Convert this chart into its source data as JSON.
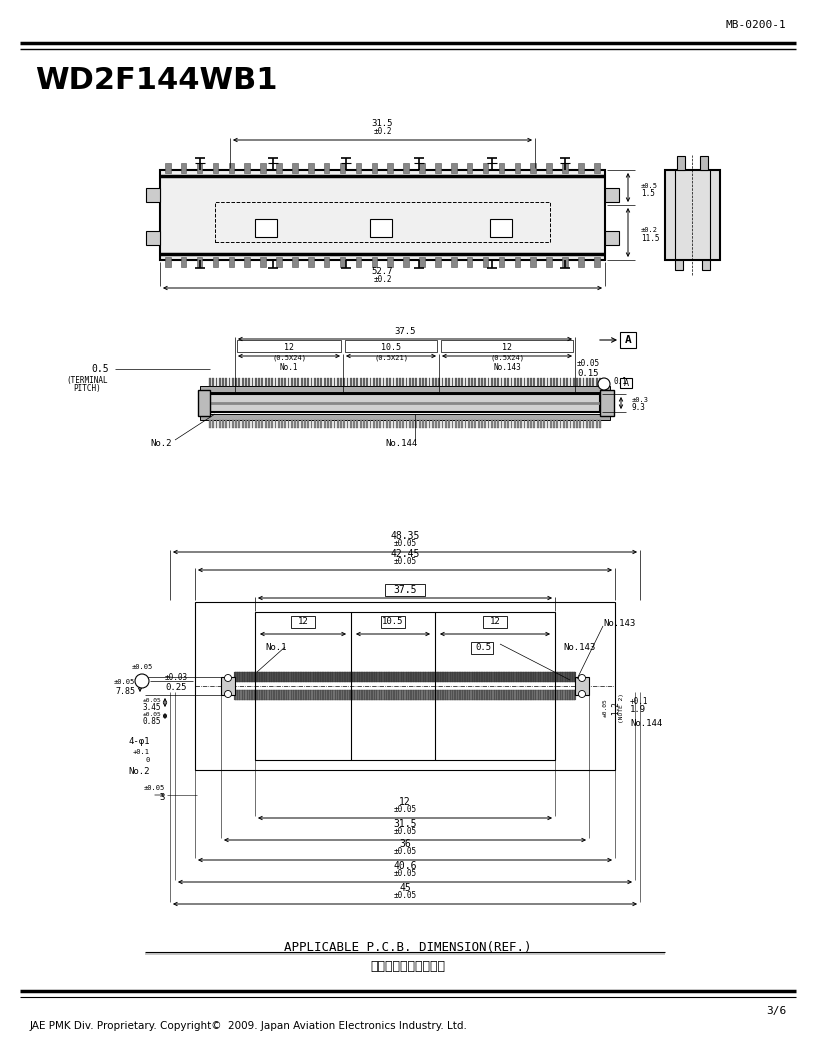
{
  "title": "WD2F144WB1",
  "doc_number": "MB-0200-1",
  "page": "3/6",
  "footer": "JAE PMK Div. Proprietary. Copyright©  2009. Japan Aviation Electronics Industry. Ltd.",
  "applicable_text": "APPLICABLE P.C.B. DIMENSION(REF.)",
  "applicable_chinese": "适合基板尺法（参考）",
  "bg_color": "#ffffff",
  "lc": "#000000"
}
